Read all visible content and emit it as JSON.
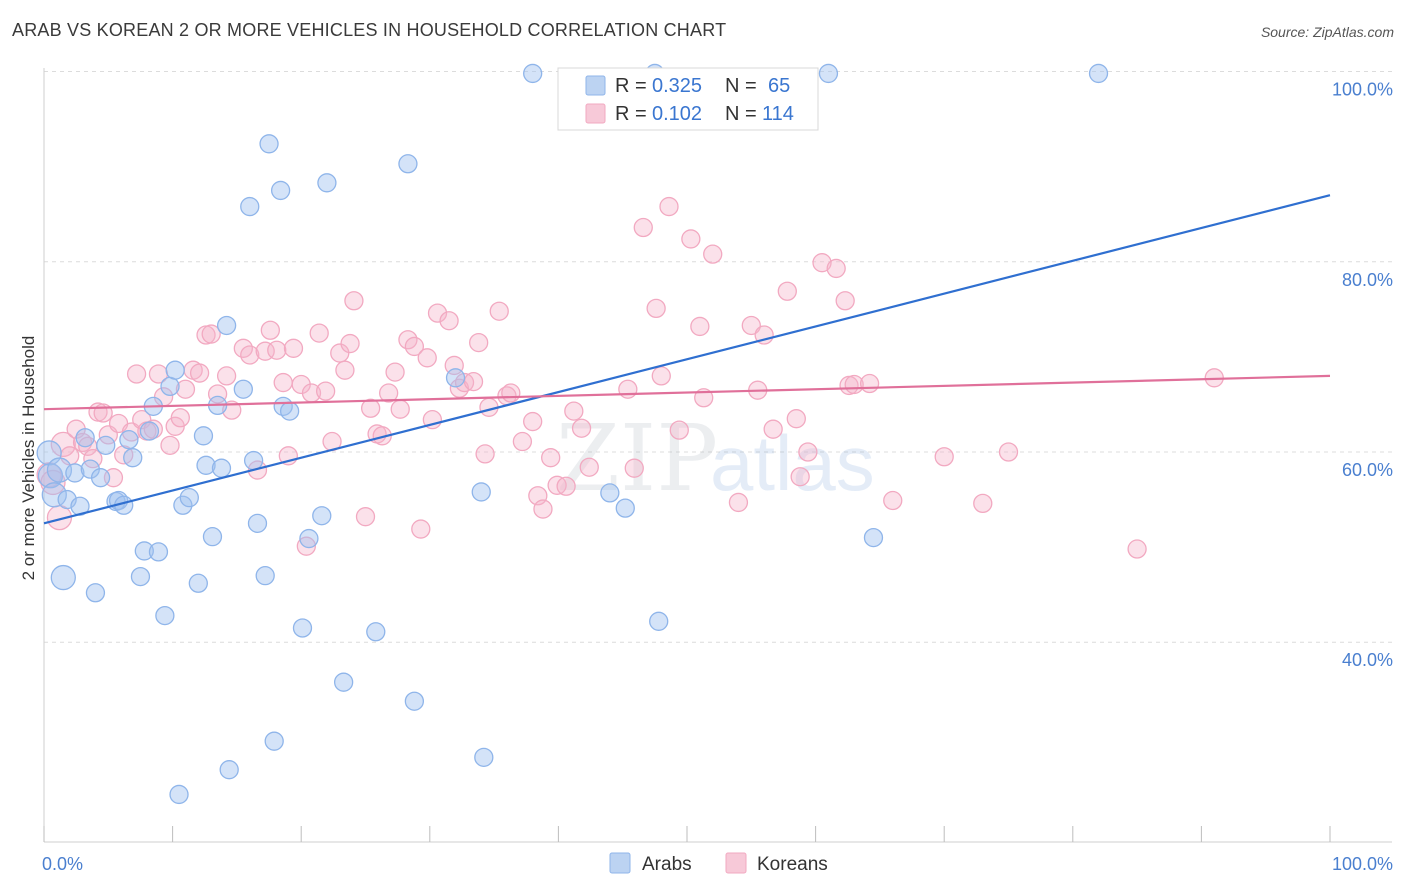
{
  "title": "ARAB VS KOREAN 2 OR MORE VEHICLES IN HOUSEHOLD CORRELATION CHART",
  "source": "Source: ZipAtlas.com",
  "watermark": {
    "zip": "ZIP",
    "atlas": "atlas"
  },
  "legend_top": {
    "r_label": "R =",
    "n_label": "N =",
    "rows": [
      {
        "series": "Arabs",
        "r": "0.325",
        "n": "65"
      },
      {
        "series": "Koreans",
        "r": "0.102",
        "n": "114"
      }
    ]
  },
  "chart_data": {
    "type": "scatter",
    "title": "ARAB VS KOREAN 2 OR MORE VEHICLES IN HOUSEHOLD CORRELATION CHART",
    "xlabel": "",
    "ylabel": "2 or more Vehicles in Household",
    "xlim": [
      0,
      100
    ],
    "ylim": [
      19,
      101
    ],
    "x_tick_labels": [
      "0.0%",
      "100.0%"
    ],
    "y_ticks": [
      40,
      60,
      80,
      100
    ],
    "y_tick_labels": [
      "40.0%",
      "60.0%",
      "80.0%",
      "100.0%"
    ],
    "grid": true,
    "series": [
      {
        "name": "Arabs",
        "color": "#8fb5ea",
        "line_color": "#2f6fd0",
        "trend": {
          "x": [
            0,
            100
          ],
          "y": [
            52.5,
            87.0
          ]
        },
        "points": [
          {
            "x": 0.4,
            "y": 59.9
          },
          {
            "x": 0.5,
            "y": 57.5
          },
          {
            "x": 0.8,
            "y": 55.5
          },
          {
            "x": 1.2,
            "y": 58.1
          },
          {
            "x": 1.5,
            "y": 46.8
          },
          {
            "x": 1.8,
            "y": 55.0
          },
          {
            "x": 2.4,
            "y": 57.8
          },
          {
            "x": 2.8,
            "y": 54.3
          },
          {
            "x": 3.2,
            "y": 61.5
          },
          {
            "x": 3.6,
            "y": 58.2
          },
          {
            "x": 4.0,
            "y": 45.2
          },
          {
            "x": 4.4,
            "y": 57.3
          },
          {
            "x": 4.8,
            "y": 60.7
          },
          {
            "x": 5.6,
            "y": 54.8
          },
          {
            "x": 5.8,
            "y": 54.9
          },
          {
            "x": 6.2,
            "y": 54.4
          },
          {
            "x": 6.6,
            "y": 61.3
          },
          {
            "x": 6.9,
            "y": 59.4
          },
          {
            "x": 7.5,
            "y": 46.9
          },
          {
            "x": 7.8,
            "y": 49.6
          },
          {
            "x": 8.2,
            "y": 62.2
          },
          {
            "x": 8.5,
            "y": 64.8
          },
          {
            "x": 8.9,
            "y": 49.5
          },
          {
            "x": 9.4,
            "y": 42.8
          },
          {
            "x": 9.8,
            "y": 66.9
          },
          {
            "x": 10.2,
            "y": 68.6
          },
          {
            "x": 10.5,
            "y": 24.0
          },
          {
            "x": 10.8,
            "y": 54.4
          },
          {
            "x": 11.3,
            "y": 55.2
          },
          {
            "x": 12.0,
            "y": 46.2
          },
          {
            "x": 12.4,
            "y": 61.7
          },
          {
            "x": 12.6,
            "y": 58.6
          },
          {
            "x": 13.1,
            "y": 51.1
          },
          {
            "x": 13.5,
            "y": 64.9
          },
          {
            "x": 13.8,
            "y": 58.3
          },
          {
            "x": 14.2,
            "y": 73.3
          },
          {
            "x": 14.4,
            "y": 26.6
          },
          {
            "x": 15.5,
            "y": 66.6
          },
          {
            "x": 16.0,
            "y": 85.8
          },
          {
            "x": 16.3,
            "y": 59.1
          },
          {
            "x": 16.6,
            "y": 52.5
          },
          {
            "x": 17.2,
            "y": 47.0
          },
          {
            "x": 17.5,
            "y": 92.4
          },
          {
            "x": 17.9,
            "y": 29.6
          },
          {
            "x": 18.4,
            "y": 87.5
          },
          {
            "x": 18.6,
            "y": 64.8
          },
          {
            "x": 19.1,
            "y": 64.3
          },
          {
            "x": 20.1,
            "y": 41.5
          },
          {
            "x": 20.6,
            "y": 50.9
          },
          {
            "x": 21.6,
            "y": 53.3
          },
          {
            "x": 22.0,
            "y": 88.3
          },
          {
            "x": 23.3,
            "y": 35.8
          },
          {
            "x": 25.8,
            "y": 41.1
          },
          {
            "x": 28.3,
            "y": 90.3
          },
          {
            "x": 28.8,
            "y": 33.8
          },
          {
            "x": 32.0,
            "y": 67.8
          },
          {
            "x": 34.0,
            "y": 55.8
          },
          {
            "x": 34.2,
            "y": 27.9
          },
          {
            "x": 38.0,
            "y": 99.8
          },
          {
            "x": 44.0,
            "y": 55.7
          },
          {
            "x": 45.2,
            "y": 54.1
          },
          {
            "x": 47.5,
            "y": 99.8
          },
          {
            "x": 47.8,
            "y": 42.2
          },
          {
            "x": 61.0,
            "y": 99.8
          },
          {
            "x": 64.5,
            "y": 51.0
          },
          {
            "x": 82.0,
            "y": 99.8
          }
        ]
      },
      {
        "name": "Koreans",
        "color": "#f2a9c1",
        "line_color": "#e0709a",
        "trend": {
          "x": [
            0,
            100
          ],
          "y": [
            64.5,
            68.0
          ]
        },
        "points": [
          {
            "x": 0.4,
            "y": 57.6
          },
          {
            "x": 0.7,
            "y": 56.8
          },
          {
            "x": 1.2,
            "y": 53.1
          },
          {
            "x": 1.5,
            "y": 60.8
          },
          {
            "x": 2.0,
            "y": 59.6
          },
          {
            "x": 2.5,
            "y": 62.4
          },
          {
            "x": 3.0,
            "y": 61.0
          },
          {
            "x": 3.4,
            "y": 60.6
          },
          {
            "x": 3.8,
            "y": 59.3
          },
          {
            "x": 4.2,
            "y": 64.2
          },
          {
            "x": 4.6,
            "y": 64.1
          },
          {
            "x": 5.0,
            "y": 61.8
          },
          {
            "x": 5.4,
            "y": 57.3
          },
          {
            "x": 5.8,
            "y": 63.0
          },
          {
            "x": 6.2,
            "y": 59.7
          },
          {
            "x": 6.8,
            "y": 62.1
          },
          {
            "x": 7.2,
            "y": 68.2
          },
          {
            "x": 7.6,
            "y": 63.4
          },
          {
            "x": 8.0,
            "y": 62.2
          },
          {
            "x": 8.5,
            "y": 62.4
          },
          {
            "x": 8.9,
            "y": 68.2
          },
          {
            "x": 9.3,
            "y": 65.8
          },
          {
            "x": 9.8,
            "y": 60.7
          },
          {
            "x": 10.2,
            "y": 62.7
          },
          {
            "x": 10.6,
            "y": 63.6
          },
          {
            "x": 11.0,
            "y": 66.6
          },
          {
            "x": 11.6,
            "y": 68.6
          },
          {
            "x": 12.1,
            "y": 68.3
          },
          {
            "x": 12.6,
            "y": 72.3
          },
          {
            "x": 13.0,
            "y": 72.4
          },
          {
            "x": 13.5,
            "y": 66.1
          },
          {
            "x": 14.2,
            "y": 68.0
          },
          {
            "x": 14.6,
            "y": 64.4
          },
          {
            "x": 15.5,
            "y": 70.9
          },
          {
            "x": 16.0,
            "y": 70.2
          },
          {
            "x": 16.6,
            "y": 58.1
          },
          {
            "x": 17.2,
            "y": 70.6
          },
          {
            "x": 17.6,
            "y": 72.8
          },
          {
            "x": 18.1,
            "y": 70.7
          },
          {
            "x": 18.6,
            "y": 67.3
          },
          {
            "x": 19.0,
            "y": 59.6
          },
          {
            "x": 19.4,
            "y": 70.9
          },
          {
            "x": 20.0,
            "y": 67.1
          },
          {
            "x": 20.4,
            "y": 50.1
          },
          {
            "x": 20.8,
            "y": 66.2
          },
          {
            "x": 21.4,
            "y": 72.5
          },
          {
            "x": 21.9,
            "y": 66.4
          },
          {
            "x": 22.4,
            "y": 61.1
          },
          {
            "x": 23.0,
            "y": 70.4
          },
          {
            "x": 23.4,
            "y": 68.6
          },
          {
            "x": 23.8,
            "y": 71.4
          },
          {
            "x": 24.1,
            "y": 75.9
          },
          {
            "x": 25.0,
            "y": 53.2
          },
          {
            "x": 25.4,
            "y": 64.6
          },
          {
            "x": 25.9,
            "y": 61.9
          },
          {
            "x": 26.3,
            "y": 61.7
          },
          {
            "x": 26.8,
            "y": 66.2
          },
          {
            "x": 27.3,
            "y": 68.4
          },
          {
            "x": 27.7,
            "y": 64.5
          },
          {
            "x": 28.3,
            "y": 71.8
          },
          {
            "x": 28.8,
            "y": 71.1
          },
          {
            "x": 29.3,
            "y": 51.9
          },
          {
            "x": 29.8,
            "y": 69.9
          },
          {
            "x": 30.2,
            "y": 63.4
          },
          {
            "x": 30.6,
            "y": 74.6
          },
          {
            "x": 31.5,
            "y": 73.8
          },
          {
            "x": 31.9,
            "y": 69.1
          },
          {
            "x": 32.3,
            "y": 66.7
          },
          {
            "x": 32.7,
            "y": 67.3
          },
          {
            "x": 33.4,
            "y": 67.4
          },
          {
            "x": 33.8,
            "y": 71.5
          },
          {
            "x": 34.3,
            "y": 59.8
          },
          {
            "x": 34.6,
            "y": 64.7
          },
          {
            "x": 35.4,
            "y": 74.8
          },
          {
            "x": 36.0,
            "y": 65.9
          },
          {
            "x": 36.3,
            "y": 66.2
          },
          {
            "x": 37.2,
            "y": 61.1
          },
          {
            "x": 38.0,
            "y": 63.2
          },
          {
            "x": 38.4,
            "y": 55.4
          },
          {
            "x": 38.8,
            "y": 54.0
          },
          {
            "x": 39.4,
            "y": 59.4
          },
          {
            "x": 39.9,
            "y": 56.5
          },
          {
            "x": 40.6,
            "y": 56.4
          },
          {
            "x": 41.2,
            "y": 64.3
          },
          {
            "x": 41.8,
            "y": 62.5
          },
          {
            "x": 42.4,
            "y": 58.4
          },
          {
            "x": 45.4,
            "y": 66.6
          },
          {
            "x": 45.9,
            "y": 58.3
          },
          {
            "x": 46.6,
            "y": 83.6
          },
          {
            "x": 47.6,
            "y": 75.1
          },
          {
            "x": 48.0,
            "y": 68.0
          },
          {
            "x": 48.6,
            "y": 85.8
          },
          {
            "x": 49.4,
            "y": 62.3
          },
          {
            "x": 50.3,
            "y": 82.4
          },
          {
            "x": 51.0,
            "y": 73.2
          },
          {
            "x": 51.3,
            "y": 65.7
          },
          {
            "x": 52.0,
            "y": 80.8
          },
          {
            "x": 54.0,
            "y": 54.7
          },
          {
            "x": 55.0,
            "y": 73.3
          },
          {
            "x": 55.5,
            "y": 66.5
          },
          {
            "x": 56.0,
            "y": 72.3
          },
          {
            "x": 56.7,
            "y": 62.4
          },
          {
            "x": 57.8,
            "y": 76.9
          },
          {
            "x": 58.5,
            "y": 63.5
          },
          {
            "x": 58.8,
            "y": 57.4
          },
          {
            "x": 59.4,
            "y": 60.0
          },
          {
            "x": 60.5,
            "y": 79.9
          },
          {
            "x": 61.6,
            "y": 79.3
          },
          {
            "x": 62.3,
            "y": 75.9
          },
          {
            "x": 62.6,
            "y": 67.0
          },
          {
            "x": 63.0,
            "y": 67.1
          },
          {
            "x": 64.2,
            "y": 67.2
          },
          {
            "x": 66.0,
            "y": 54.9
          },
          {
            "x": 70.0,
            "y": 59.5
          },
          {
            "x": 73.0,
            "y": 54.6
          },
          {
            "x": 75.0,
            "y": 60.0
          },
          {
            "x": 85.0,
            "y": 49.8
          },
          {
            "x": 91.0,
            "y": 67.8
          }
        ]
      }
    ]
  },
  "bottom_legend": [
    "Arabs",
    "Koreans"
  ]
}
